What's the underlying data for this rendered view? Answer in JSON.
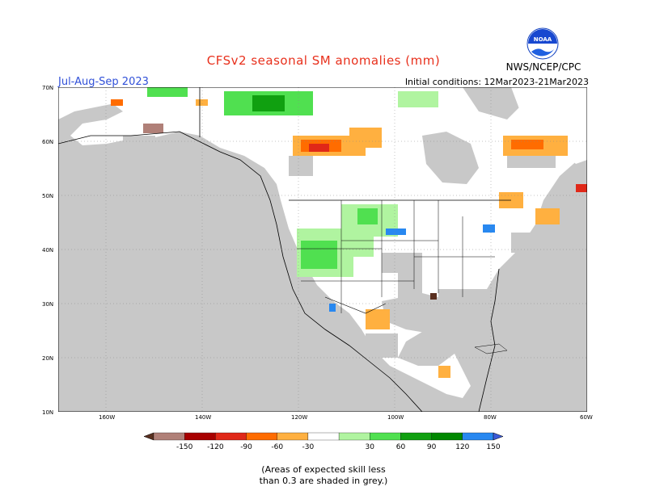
{
  "title": "CFSv2 seasonal SM anomalies (mm)",
  "season": "Jul-Aug-Sep 2023",
  "initial_conditions": "Initial conditions: 12Mar2023-21Mar2023",
  "agency": "NWS/NCEP/CPC",
  "logo_text": "NOAA",
  "lat_labels": [
    "70N",
    "60N",
    "50N",
    "40N",
    "30N",
    "20N",
    "10N"
  ],
  "lon_labels": [
    "160W",
    "140W",
    "120W",
    "100W",
    "80W",
    "60W"
  ],
  "colorbar": {
    "labels": [
      "-150",
      "-120",
      "-90",
      "-60",
      "-30",
      "30",
      "60",
      "90",
      "120",
      "150"
    ],
    "colors": [
      "#5a3020",
      "#b08078",
      "#a80000",
      "#e02818",
      "#ff6c00",
      "#ffb040",
      "#ffffff",
      "#b0f4a0",
      "#50e050",
      "#10a010",
      "#008800",
      "#2888f0",
      "#3a5ad8"
    ]
  },
  "note_line1": "(Areas of expected skill less",
  "note_line2": "than 0.3 are shaded in grey.)",
  "map_colors": {
    "ocean": "#ffffff",
    "no_skill_grey": "#c8c8c8",
    "border": "#000000"
  }
}
